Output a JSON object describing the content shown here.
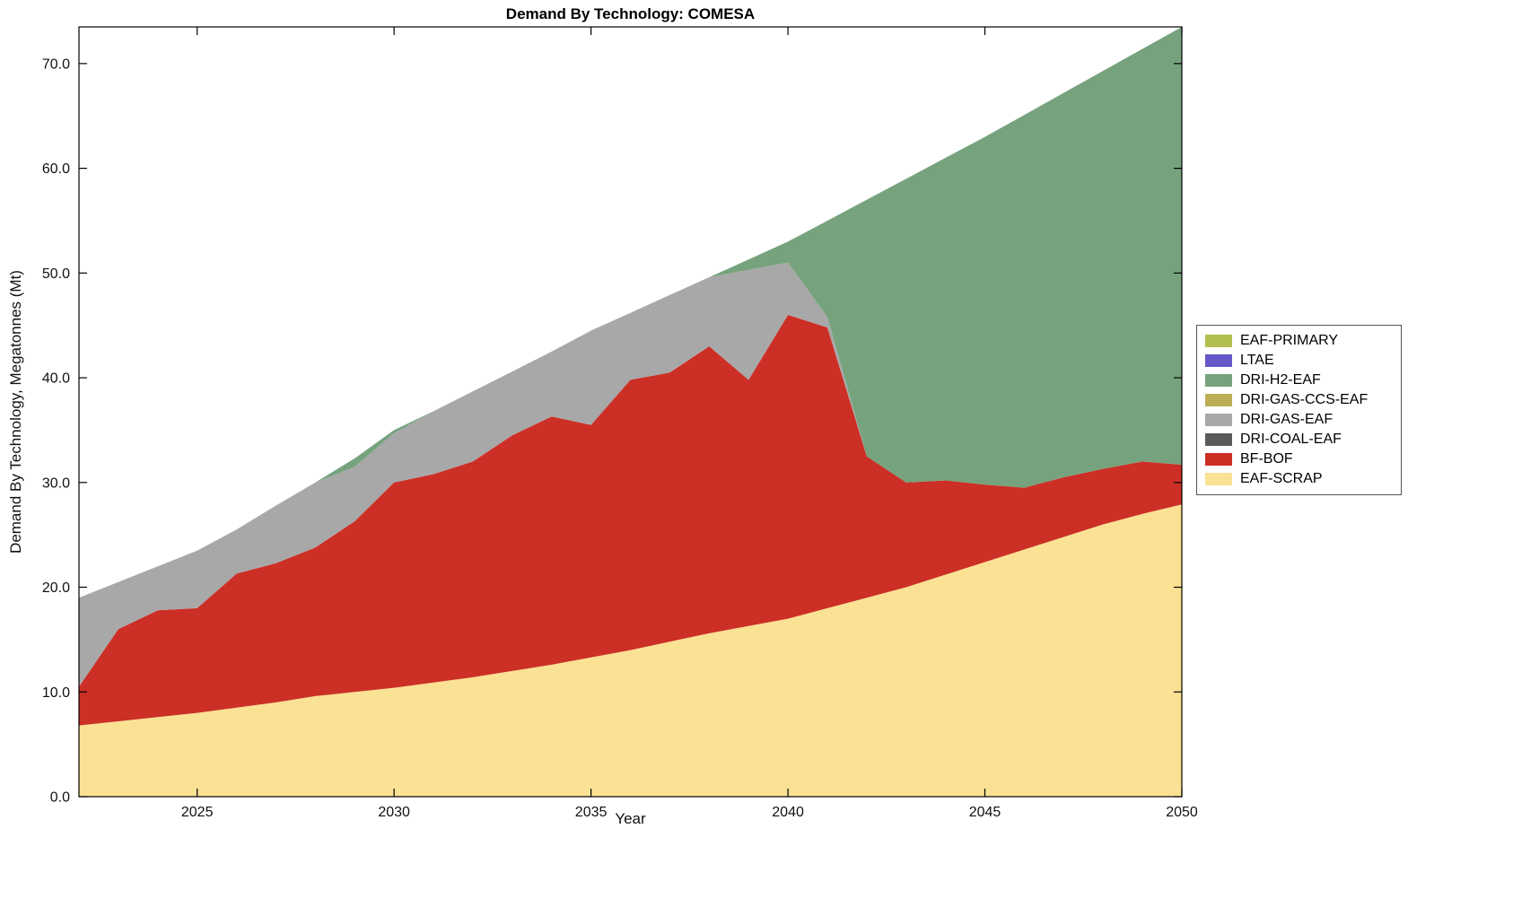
{
  "title": "Demand By Technology: COMESA",
  "xlabel": "Year",
  "ylabel": "Demand By Technology, Megatonnes (Mt)",
  "axes": {
    "x_tick_labels": [
      "2025",
      "2030",
      "2035",
      "2040",
      "2045",
      "2050"
    ],
    "y_tick_labels": [
      "0.0",
      "10.0",
      "20.0",
      "30.0",
      "40.0",
      "50.0",
      "60.0",
      "70.0"
    ]
  },
  "chart_data": {
    "type": "area",
    "stacked": true,
    "title": "Demand By Technology: COMESA",
    "xlabel": "Year",
    "ylabel": "Demand By Technology, Megatonnes (Mt)",
    "grid": false,
    "legend_position": "right-outside",
    "x_range": [
      2022,
      2050
    ],
    "y_range": [
      0,
      73.5
    ],
    "x_ticks": [
      2025,
      2030,
      2035,
      2040,
      2045,
      2050
    ],
    "y_ticks": [
      0,
      10,
      20,
      30,
      40,
      50,
      60,
      70
    ],
    "x": [
      2022,
      2023,
      2024,
      2025,
      2026,
      2027,
      2028,
      2029,
      2030,
      2031,
      2032,
      2033,
      2034,
      2035,
      2036,
      2037,
      2038,
      2039,
      2040,
      2041,
      2042,
      2043,
      2044,
      2045,
      2046,
      2047,
      2048,
      2049,
      2050
    ],
    "series_bottom_to_top": [
      {
        "name": "EAF-SCRAP",
        "color": "#fae193",
        "values": [
          6.8,
          7.2,
          7.6,
          8.0,
          8.5,
          9.0,
          9.6,
          10.0,
          10.4,
          10.9,
          11.4,
          12.0,
          12.6,
          13.3,
          14.0,
          14.8,
          15.6,
          16.3,
          17.0,
          18.0,
          19.0,
          20.0,
          21.2,
          22.4,
          23.6,
          24.8,
          26.0,
          27.0,
          27.9
        ]
      },
      {
        "name": "BF-BOF",
        "color": "#cc2f26",
        "values": [
          3.7,
          8.8,
          10.2,
          10.0,
          12.8,
          13.3,
          14.2,
          16.3,
          19.6,
          19.9,
          20.6,
          22.5,
          23.7,
          22.2,
          25.8,
          25.7,
          27.4,
          23.5,
          29.0,
          26.8,
          13.5,
          10.0,
          9.0,
          7.4,
          5.9,
          5.7,
          5.3,
          5.0,
          3.8
        ]
      },
      {
        "name": "DRI-COAL-EAF",
        "color": "#5a5a5a",
        "values": [
          0,
          0,
          0,
          0,
          0,
          0,
          0,
          0,
          0,
          0,
          0,
          0,
          0,
          0,
          0,
          0,
          0,
          0,
          0,
          0,
          0,
          0,
          0,
          0,
          0,
          0,
          0,
          0,
          0
        ]
      },
      {
        "name": "DRI-GAS-EAF",
        "color": "#a8a8a8",
        "values": [
          8.5,
          4.5,
          4.2,
          5.5,
          4.2,
          5.5,
          6.2,
          5.2,
          4.7,
          6.0,
          6.7,
          6.1,
          6.2,
          9.0,
          6.4,
          7.4,
          6.6,
          10.5,
          5.0,
          1.0,
          0,
          0,
          0,
          0,
          0,
          0,
          0,
          0,
          0
        ]
      },
      {
        "name": "DRI-GAS-CCS-EAF",
        "color": "#bcae55",
        "values": [
          0,
          0,
          0,
          0,
          0,
          0,
          0,
          0,
          0,
          0,
          0,
          0,
          0,
          0,
          0,
          0,
          0,
          0,
          0,
          0,
          0,
          0,
          0,
          0,
          0,
          0,
          0,
          0,
          0
        ]
      },
      {
        "name": "DRI-H2-EAF",
        "color": "#76a37e",
        "values": [
          0,
          0,
          0,
          0,
          0,
          0,
          0,
          0.8,
          0.3,
          0,
          0,
          0,
          0,
          0,
          0,
          0,
          0,
          1.0,
          2.0,
          9.2,
          24.5,
          29.0,
          30.8,
          33.2,
          35.6,
          36.7,
          38.0,
          39.4,
          41.8
        ]
      },
      {
        "name": "LTAE",
        "color": "#6458c8",
        "values": [
          0,
          0,
          0,
          0,
          0,
          0,
          0,
          0,
          0,
          0,
          0,
          0,
          0,
          0,
          0,
          0,
          0,
          0,
          0,
          0,
          0,
          0,
          0,
          0,
          0,
          0,
          0,
          0,
          0
        ]
      },
      {
        "name": "EAF-PRIMARY",
        "color": "#b2bf4e",
        "values": [
          0,
          0,
          0,
          0,
          0,
          0,
          0,
          0,
          0,
          0,
          0,
          0,
          0,
          0,
          0,
          0,
          0,
          0,
          0,
          0,
          0,
          0,
          0,
          0,
          0,
          0,
          0,
          0,
          0
        ]
      }
    ],
    "legend_order_top_to_bottom": [
      "EAF-PRIMARY",
      "LTAE",
      "DRI-H2-EAF",
      "DRI-GAS-CCS-EAF",
      "DRI-GAS-EAF",
      "DRI-COAL-EAF",
      "BF-BOF",
      "EAF-SCRAP"
    ]
  }
}
